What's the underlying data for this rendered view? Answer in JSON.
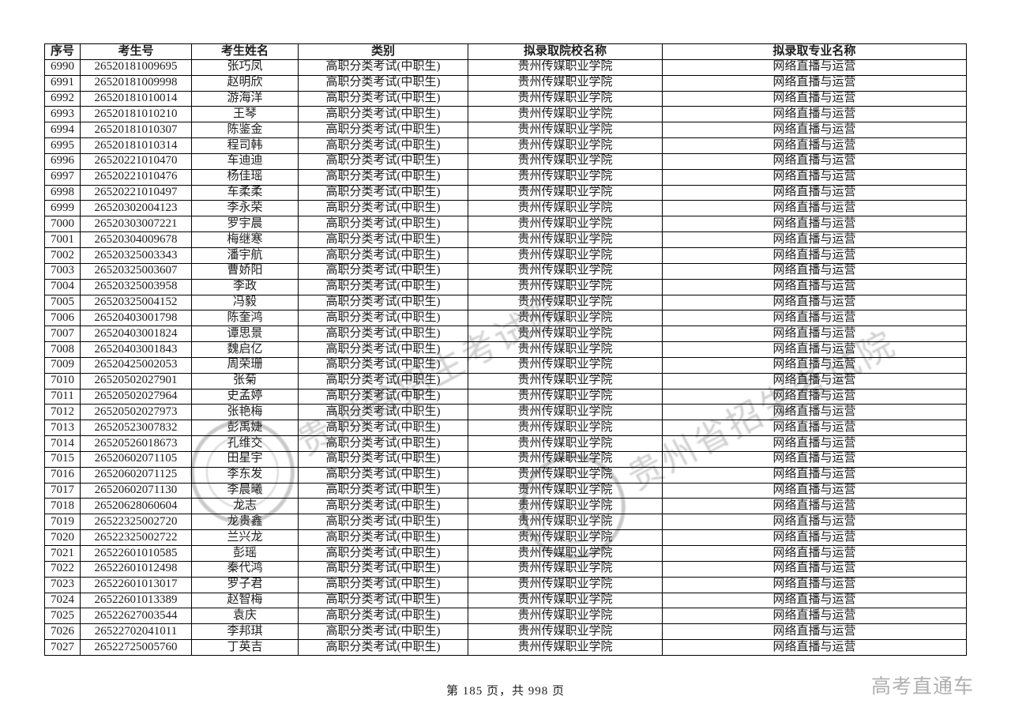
{
  "table": {
    "col_keys": [
      "serial",
      "candidate-no",
      "candidate-name",
      "category",
      "college",
      "major"
    ],
    "headers": [
      "序号",
      "考生号",
      "考生姓名",
      "类别",
      "拟录取院校名称",
      "拟录取专业名称"
    ],
    "rows": [
      [
        "6990",
        "26520181009695",
        "张巧凤",
        "高职分类考试(中职生)",
        "贵州传媒职业学院",
        "网络直播与运营"
      ],
      [
        "6991",
        "26520181009998",
        "赵明欣",
        "高职分类考试(中职生)",
        "贵州传媒职业学院",
        "网络直播与运营"
      ],
      [
        "6992",
        "26520181010014",
        "游海洋",
        "高职分类考试(中职生)",
        "贵州传媒职业学院",
        "网络直播与运营"
      ],
      [
        "6993",
        "26520181010210",
        "王琴",
        "高职分类考试(中职生)",
        "贵州传媒职业学院",
        "网络直播与运营"
      ],
      [
        "6994",
        "26520181010307",
        "陈鉴金",
        "高职分类考试(中职生)",
        "贵州传媒职业学院",
        "网络直播与运营"
      ],
      [
        "6995",
        "26520181010314",
        "程司韩",
        "高职分类考试(中职生)",
        "贵州传媒职业学院",
        "网络直播与运营"
      ],
      [
        "6996",
        "26520221010470",
        "车迪迪",
        "高职分类考试(中职生)",
        "贵州传媒职业学院",
        "网络直播与运营"
      ],
      [
        "6997",
        "26520221010476",
        "杨佳瑶",
        "高职分类考试(中职生)",
        "贵州传媒职业学院",
        "网络直播与运营"
      ],
      [
        "6998",
        "26520221010497",
        "车柔柔",
        "高职分类考试(中职生)",
        "贵州传媒职业学院",
        "网络直播与运营"
      ],
      [
        "6999",
        "26520302004123",
        "李永荣",
        "高职分类考试(中职生)",
        "贵州传媒职业学院",
        "网络直播与运营"
      ],
      [
        "7000",
        "26520303007221",
        "罗宇晨",
        "高职分类考试(中职生)",
        "贵州传媒职业学院",
        "网络直播与运营"
      ],
      [
        "7001",
        "26520304009678",
        "梅继寒",
        "高职分类考试(中职生)",
        "贵州传媒职业学院",
        "网络直播与运营"
      ],
      [
        "7002",
        "26520325003343",
        "潘宇航",
        "高职分类考试(中职生)",
        "贵州传媒职业学院",
        "网络直播与运营"
      ],
      [
        "7003",
        "26520325003607",
        "曹娇阳",
        "高职分类考试(中职生)",
        "贵州传媒职业学院",
        "网络直播与运营"
      ],
      [
        "7004",
        "26520325003958",
        "李政",
        "高职分类考试(中职生)",
        "贵州传媒职业学院",
        "网络直播与运营"
      ],
      [
        "7005",
        "26520325004152",
        "冯毅",
        "高职分类考试(中职生)",
        "贵州传媒职业学院",
        "网络直播与运营"
      ],
      [
        "7006",
        "26520403001798",
        "陈奎鸿",
        "高职分类考试(中职生)",
        "贵州传媒职业学院",
        "网络直播与运营"
      ],
      [
        "7007",
        "26520403001824",
        "谭思景",
        "高职分类考试(中职生)",
        "贵州传媒职业学院",
        "网络直播与运营"
      ],
      [
        "7008",
        "26520403001843",
        "魏启亿",
        "高职分类考试(中职生)",
        "贵州传媒职业学院",
        "网络直播与运营"
      ],
      [
        "7009",
        "26520425002053",
        "周荣珊",
        "高职分类考试(中职生)",
        "贵州传媒职业学院",
        "网络直播与运营"
      ],
      [
        "7010",
        "26520502027901",
        "张菊",
        "高职分类考试(中职生)",
        "贵州传媒职业学院",
        "网络直播与运营"
      ],
      [
        "7011",
        "26520502027964",
        "史孟婷",
        "高职分类考试(中职生)",
        "贵州传媒职业学院",
        "网络直播与运营"
      ],
      [
        "7012",
        "26520502027973",
        "张艳梅",
        "高职分类考试(中职生)",
        "贵州传媒职业学院",
        "网络直播与运营"
      ],
      [
        "7013",
        "26520523007832",
        "彭禹婕",
        "高职分类考试(中职生)",
        "贵州传媒职业学院",
        "网络直播与运营"
      ],
      [
        "7014",
        "26520526018673",
        "孔维交",
        "高职分类考试(中职生)",
        "贵州传媒职业学院",
        "网络直播与运营"
      ],
      [
        "7015",
        "26520602071105",
        "田星宇",
        "高职分类考试(中职生)",
        "贵州传媒职业学院",
        "网络直播与运营"
      ],
      [
        "7016",
        "26520602071125",
        "李东发",
        "高职分类考试(中职生)",
        "贵州传媒职业学院",
        "网络直播与运营"
      ],
      [
        "7017",
        "26520602071130",
        "李晨曦",
        "高职分类考试(中职生)",
        "贵州传媒职业学院",
        "网络直播与运营"
      ],
      [
        "7018",
        "26520628060604",
        "龙志",
        "高职分类考试(中职生)",
        "贵州传媒职业学院",
        "网络直播与运营"
      ],
      [
        "7019",
        "26522325002720",
        "龙贵鑫",
        "高职分类考试(中职生)",
        "贵州传媒职业学院",
        "网络直播与运营"
      ],
      [
        "7020",
        "26522325002722",
        "兰兴龙",
        "高职分类考试(中职生)",
        "贵州传媒职业学院",
        "网络直播与运营"
      ],
      [
        "7021",
        "26522601010585",
        "彭瑶",
        "高职分类考试(中职生)",
        "贵州传媒职业学院",
        "网络直播与运营"
      ],
      [
        "7022",
        "26522601012498",
        "秦代鸿",
        "高职分类考试(中职生)",
        "贵州传媒职业学院",
        "网络直播与运营"
      ],
      [
        "7023",
        "26522601013017",
        "罗子君",
        "高职分类考试(中职生)",
        "贵州传媒职业学院",
        "网络直播与运营"
      ],
      [
        "7024",
        "26522601013389",
        "赵智梅",
        "高职分类考试(中职生)",
        "贵州传媒职业学院",
        "网络直播与运营"
      ],
      [
        "7025",
        "26522627003544",
        "袁庆",
        "高职分类考试(中职生)",
        "贵州传媒职业学院",
        "网络直播与运营"
      ],
      [
        "7026",
        "26522702041011",
        "李邦琪",
        "高职分类考试(中职生)",
        "贵州传媒职业学院",
        "网络直播与运营"
      ],
      [
        "7027",
        "26522725005760",
        "丁英吉",
        "高职分类考试(中职生)",
        "贵州传媒职业学院",
        "网络直播与运营"
      ]
    ]
  },
  "watermark": {
    "stamp_text": "贵州省招生考试院",
    "brand_text": "高考直通车"
  },
  "footer": {
    "page_info": "第 185 页，共 998 页"
  },
  "colors": {
    "border": "#000000",
    "text": "#202020",
    "watermark_gray": "#707070",
    "brand_gray": "#b0b0b0"
  }
}
